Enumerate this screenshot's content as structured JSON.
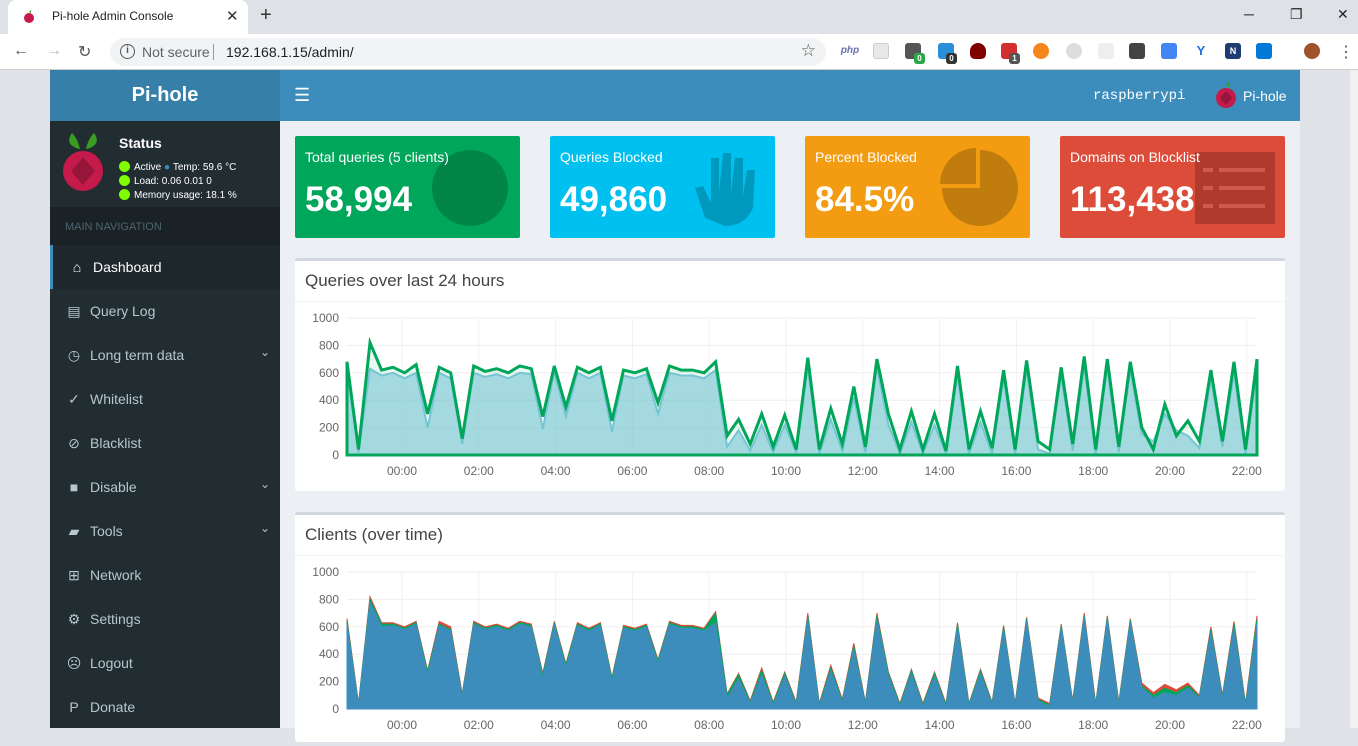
{
  "browser": {
    "tab_title": "Pi-hole Admin Console",
    "not_secure": "Not secure",
    "url": "192.168.1.15/admin/",
    "ext_php": "php",
    "badge_1": "0",
    "badge_2": "0",
    "badge_3": "1"
  },
  "sidebar": {
    "logo": "Pi-hole",
    "status_title": "Status",
    "active": "Active",
    "temp": "Temp: 59.6 °C",
    "load": "Load:  0.06  0.01  0",
    "memory": "Memory usage:  18.1 %",
    "nav_header": "MAIN NAVIGATION",
    "items": [
      {
        "label": "Dashboard",
        "icon": "home-icon"
      },
      {
        "label": "Query Log",
        "icon": "file-icon"
      },
      {
        "label": "Long term data",
        "icon": "clock-icon"
      },
      {
        "label": "Whitelist",
        "icon": "check-circle-icon"
      },
      {
        "label": "Blacklist",
        "icon": "ban-icon"
      },
      {
        "label": "Disable",
        "icon": "stop-icon"
      },
      {
        "label": "Tools",
        "icon": "folder-icon"
      },
      {
        "label": "Network",
        "icon": "sitemap-icon"
      },
      {
        "label": "Settings",
        "icon": "gears-icon"
      },
      {
        "label": "Logout",
        "icon": "user-times-icon"
      },
      {
        "label": "Donate",
        "icon": "paypal-icon"
      }
    ]
  },
  "header": {
    "hostname": "raspberrypi",
    "brand": "Pi-hole"
  },
  "stats": [
    {
      "title": "Total queries (5 clients)",
      "value": "58,994",
      "color": "#00a65a",
      "icon": "globe-icon"
    },
    {
      "title": "Queries Blocked",
      "value": "49,860",
      "color": "#00c0ef",
      "icon": "hand-icon"
    },
    {
      "title": "Percent Blocked",
      "value": "84.5%",
      "color": "#f39c12",
      "icon": "pie-chart-icon"
    },
    {
      "title": "Domains on Blocklist",
      "value": "113,438",
      "color": "#dd4b39",
      "icon": "list-icon"
    }
  ],
  "chart_data": [
    {
      "type": "area",
      "title": "Queries over last 24 hours",
      "ylim": [
        0,
        1000
      ],
      "yticks": [
        "1000",
        "800",
        "600",
        "400",
        "200",
        "0"
      ],
      "xticks": [
        "00:00",
        "02:00",
        "04:00",
        "06:00",
        "08:00",
        "10:00",
        "12:00",
        "14:00",
        "16:00",
        "18:00",
        "20:00",
        "22:00"
      ],
      "series": [
        {
          "color": "#00a65a",
          "values": [
            680,
            40,
            820,
            620,
            640,
            600,
            660,
            300,
            640,
            600,
            120,
            650,
            610,
            630,
            600,
            650,
            630,
            280,
            650,
            350,
            640,
            600,
            640,
            250,
            620,
            600,
            630,
            380,
            650,
            620,
            620,
            600,
            680,
            140,
            260,
            80,
            300,
            60,
            290,
            40,
            710,
            40,
            340,
            80,
            500,
            60,
            700,
            300,
            40,
            320,
            40,
            300,
            30,
            650,
            40,
            320,
            50,
            620,
            40,
            690,
            100,
            40,
            640,
            80,
            720,
            40,
            700,
            60,
            680,
            200,
            40,
            370,
            140,
            250,
            100,
            620,
            100,
            680,
            40,
            700
          ]
        },
        {
          "color": "#7fc8e0",
          "values": [
            620,
            20,
            630,
            580,
            600,
            560,
            600,
            200,
            600,
            560,
            80,
            600,
            570,
            590,
            560,
            600,
            590,
            190,
            610,
            280,
            600,
            560,
            600,
            170,
            580,
            560,
            590,
            300,
            600,
            580,
            580,
            560,
            620,
            60,
            180,
            30,
            220,
            20,
            220,
            20,
            640,
            10,
            260,
            30,
            420,
            20,
            640,
            220,
            10,
            240,
            10,
            220,
            10,
            580,
            10,
            240,
            10,
            560,
            10,
            630,
            40,
            10,
            580,
            30,
            650,
            10,
            640,
            20,
            620,
            150,
            100,
            300,
            180,
            140,
            50,
            560,
            60,
            600,
            10,
            620
          ]
        }
      ]
    },
    {
      "type": "area",
      "title": "Clients (over time)",
      "ylim": [
        0,
        1000
      ],
      "yticks": [
        "1000",
        "800",
        "600",
        "400",
        "200",
        "0"
      ],
      "xticks": [
        "00:00",
        "02:00",
        "04:00",
        "06:00",
        "08:00",
        "10:00",
        "12:00",
        "14:00",
        "16:00",
        "18:00",
        "20:00",
        "22:00"
      ],
      "series": [
        {
          "color": "#3c8dbc",
          "values": [
            620,
            30,
            780,
            600,
            610,
            580,
            620,
            250,
            610,
            570,
            90,
            620,
            580,
            600,
            570,
            620,
            600,
            230,
            620,
            300,
            610,
            570,
            610,
            200,
            590,
            570,
            600,
            330,
            620,
            590,
            590,
            570,
            630,
            80,
            220,
            40,
            250,
            30,
            240,
            30,
            660,
            20,
            280,
            50,
            440,
            30,
            660,
            240,
            20,
            260,
            20,
            240,
            20,
            600,
            20,
            260,
            30,
            580,
            20,
            650,
            60,
            20,
            600,
            40,
            670,
            20,
            660,
            30,
            640,
            160,
            80,
            120,
            100,
            150,
            80,
            560,
            80,
            600,
            20,
            620
          ]
        },
        {
          "color": "#00a65a",
          "values": [
            640,
            35,
            800,
            620,
            620,
            590,
            630,
            270,
            620,
            580,
            100,
            630,
            590,
            610,
            580,
            630,
            610,
            250,
            630,
            320,
            620,
            580,
            620,
            220,
            600,
            580,
            610,
            350,
            630,
            600,
            600,
            580,
            700,
            100,
            250,
            50,
            280,
            40,
            260,
            40,
            680,
            30,
            300,
            60,
            460,
            40,
            680,
            260,
            30,
            280,
            30,
            260,
            30,
            620,
            30,
            280,
            40,
            600,
            30,
            660,
            70,
            30,
            610,
            50,
            680,
            30,
            670,
            40,
            650,
            170,
            100,
            150,
            120,
            170,
            90,
            580,
            90,
            620,
            30,
            650
          ]
        },
        {
          "color": "#dd4b39",
          "values": [
            660,
            40,
            820,
            630,
            630,
            600,
            640,
            280,
            640,
            600,
            110,
            640,
            600,
            620,
            590,
            640,
            620,
            260,
            640,
            330,
            630,
            590,
            630,
            230,
            610,
            590,
            620,
            360,
            640,
            610,
            610,
            590,
            710,
            110,
            260,
            60,
            300,
            50,
            270,
            50,
            700,
            40,
            320,
            70,
            480,
            50,
            700,
            270,
            40,
            290,
            40,
            270,
            40,
            630,
            40,
            290,
            50,
            610,
            40,
            670,
            80,
            40,
            620,
            60,
            700,
            40,
            680,
            50,
            660,
            190,
            120,
            180,
            140,
            190,
            100,
            600,
            100,
            640,
            40,
            680
          ]
        }
      ]
    }
  ]
}
